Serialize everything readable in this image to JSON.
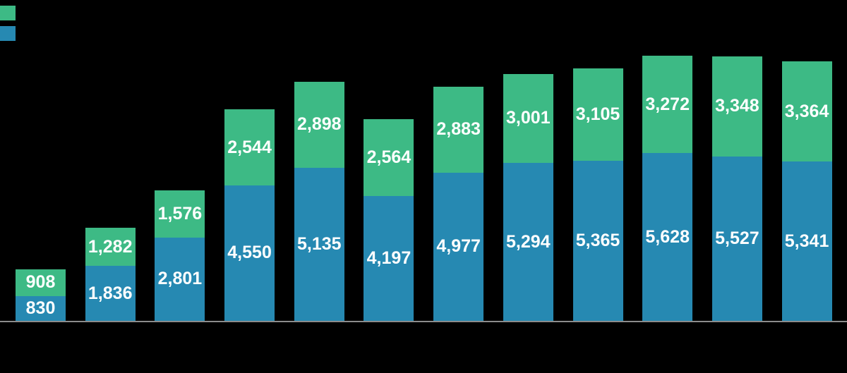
{
  "page": {
    "background_color": "#000000",
    "axis_line_color": "#8c8c8c"
  },
  "legend": {
    "position": "top-left",
    "labels_visible": false,
    "entries": [
      {
        "name": "green-series-swatch",
        "color": "#3dba85"
      },
      {
        "name": "blue-series-swatch",
        "color": "#2689b2"
      }
    ]
  },
  "chart_data": {
    "type": "bar",
    "stacked": true,
    "orientation": "vertical",
    "title": "",
    "xlabel": "",
    "ylabel": "",
    "grid": false,
    "y_axis_visible": false,
    "x_axis_line_visible": true,
    "x_tick_labels_visible": false,
    "legend_position": "top-left",
    "value_label_color": "#ffffff",
    "num_bars": 12,
    "series": [
      {
        "name": "green-top-segment",
        "color": "#3dba85",
        "values": [
          908,
          1282,
          1576,
          2544,
          2898,
          2564,
          2883,
          3001,
          3105,
          3272,
          3348,
          3364
        ],
        "labels": [
          "908",
          "1,282",
          "1,576",
          "2,544",
          "2,898",
          "2,564",
          "2,883",
          "3,001",
          "3,105",
          "3,272",
          "3,348",
          "3,364"
        ]
      },
      {
        "name": "blue-bottom-segment",
        "color": "#2689b2",
        "values": [
          830,
          1836,
          2801,
          4550,
          5135,
          4197,
          4977,
          5294,
          5365,
          5628,
          5527,
          5341
        ],
        "labels": [
          "830",
          "1,836",
          "2,801",
          "4,550",
          "5,135",
          "4,197",
          "4,977",
          "5,294",
          "5,365",
          "5,628",
          "5,527",
          "5,341"
        ]
      }
    ],
    "stack_totals": [
      1738,
      3118,
      4377,
      7094,
      8033,
      6761,
      7860,
      8295,
      8470,
      8900,
      8875,
      8705
    ]
  }
}
